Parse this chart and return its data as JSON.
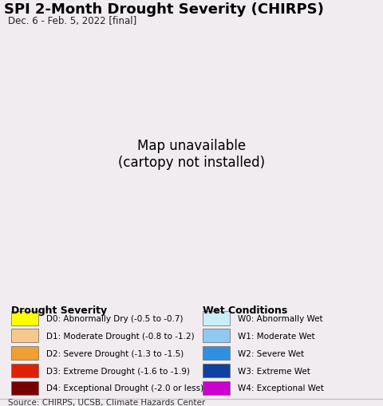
{
  "title": "SPI 2-Month Drought Severity (CHIRPS)",
  "subtitle": "Dec. 6 - Feb. 5, 2022 [final]",
  "source": "Source: CHIRPS, UCSB, Climate Hazards Center",
  "figsize": [
    4.8,
    5.1
  ],
  "dpi": 100,
  "background_color": "#f0ecf0",
  "ocean_color": "#c0eaf5",
  "land_outside_color": "#e8e0e8",
  "map_extent": [
    123.5,
    132.0,
    33.0,
    43.5
  ],
  "legend_drought": {
    "title": "Drought Severity",
    "items": [
      {
        "label": "D0: Abnormally Dry (-0.5 to -0.7)",
        "color": "#ffff00"
      },
      {
        "label": "D1: Moderate Drought (-0.8 to -1.2)",
        "color": "#f5c88c"
      },
      {
        "label": "D2: Severe Drought (-1.3 to -1.5)",
        "color": "#f0a030"
      },
      {
        "label": "D3: Extreme Drought (-1.6 to -1.9)",
        "color": "#e02000"
      },
      {
        "label": "D4: Exceptional Drought (-2.0 or less)",
        "color": "#780000"
      }
    ]
  },
  "legend_wet": {
    "title": "Wet Conditions",
    "items": [
      {
        "label": "W0: Abnormally Wet",
        "color": "#c8eef8"
      },
      {
        "label": "W1: Moderate Wet",
        "color": "#90c8f0"
      },
      {
        "label": "W2: Severe Wet",
        "color": "#3090e0"
      },
      {
        "label": "W3: Extreme Wet",
        "color": "#1040a0"
      },
      {
        "label": "W4: Exceptional Wet",
        "color": "#cc00cc"
      }
    ]
  },
  "title_fontsize": 13,
  "subtitle_fontsize": 8.5,
  "source_fontsize": 7.5,
  "legend_title_fontsize": 9,
  "legend_item_fontsize": 7.5
}
